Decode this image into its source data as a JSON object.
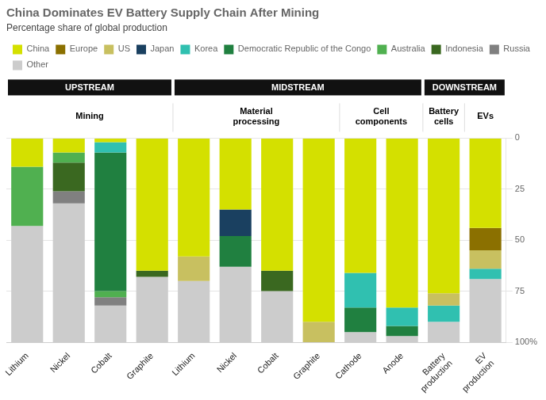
{
  "chart_data": {
    "type": "bar",
    "stacked": true,
    "title": "China Dominates EV Battery Supply Chain After Mining",
    "subtitle": "Percentage share of global production",
    "categories": [
      "Lithium",
      "Nickel",
      "Cobalt",
      "Graphite",
      "Lithium",
      "Nickel",
      "Cobalt",
      "Graphite",
      "Cathode",
      "Anode",
      "Battery\nproduction",
      "EV\nproduction"
    ],
    "sections": [
      "UPSTREAM",
      "MIDSTREAM",
      "DOWNSTREAM"
    ],
    "groups": [
      {
        "label": "Mining",
        "section": "UPSTREAM",
        "categories": [
          "Lithium",
          "Nickel",
          "Cobalt",
          "Graphite"
        ]
      },
      {
        "label": "Material\nprocessing",
        "section": "MIDSTREAM",
        "categories": [
          "Lithium",
          "Nickel",
          "Cobalt",
          "Graphite"
        ]
      },
      {
        "label": "Cell\ncomponents",
        "section": "MIDSTREAM",
        "categories": [
          "Cathode",
          "Anode"
        ]
      },
      {
        "label": "Battery\ncells",
        "section": "DOWNSTREAM",
        "categories": [
          "Battery\nproduction"
        ]
      },
      {
        "label": "EVs",
        "section": "DOWNSTREAM",
        "categories": [
          "EV\nproduction"
        ]
      }
    ],
    "series": [
      {
        "name": "China",
        "color": "#d4e000",
        "values": [
          14,
          7,
          2,
          65,
          58,
          35,
          65,
          90,
          66,
          83,
          76,
          44
        ]
      },
      {
        "name": "Europe",
        "color": "#8b7000",
        "values": [
          null,
          null,
          null,
          null,
          null,
          null,
          null,
          null,
          null,
          null,
          null,
          11
        ]
      },
      {
        "name": "US",
        "color": "#c8c060",
        "values": [
          null,
          null,
          null,
          null,
          12,
          null,
          null,
          10,
          null,
          null,
          6,
          9
        ]
      },
      {
        "name": "Japan",
        "color": "#1a4060",
        "values": [
          null,
          null,
          null,
          null,
          null,
          13,
          null,
          null,
          null,
          null,
          null,
          null
        ]
      },
      {
        "name": "Korea",
        "color": "#30c0b0",
        "values": [
          null,
          null,
          5,
          null,
          null,
          null,
          null,
          null,
          17,
          9,
          8,
          5
        ]
      },
      {
        "name": "Democratic Republic of the Congo",
        "color": "#208040",
        "values": [
          null,
          null,
          68,
          null,
          null,
          15,
          null,
          null,
          12,
          5,
          null,
          null
        ]
      },
      {
        "name": "Australia",
        "color": "#50b050",
        "values": [
          29,
          5,
          3,
          null,
          null,
          null,
          null,
          null,
          null,
          null,
          null,
          null
        ]
      },
      {
        "name": "Indonesia",
        "color": "#3a6820",
        "values": [
          null,
          14,
          null,
          3,
          null,
          null,
          10,
          null,
          null,
          null,
          null,
          null
        ]
      },
      {
        "name": "Russia",
        "color": "#808080",
        "values": [
          null,
          6,
          4,
          null,
          null,
          null,
          null,
          null,
          null,
          null,
          null,
          null
        ]
      },
      {
        "name": "Other",
        "color": "#cccccc",
        "values": [
          57,
          68,
          18,
          32,
          30,
          37,
          25,
          null,
          5,
          3,
          10,
          31
        ]
      }
    ],
    "ylim": [
      100,
      0
    ],
    "yticks": [
      0,
      25,
      50,
      75,
      {
        "value": 100,
        "label": "100%"
      }
    ],
    "grid": true,
    "legend": "top"
  }
}
